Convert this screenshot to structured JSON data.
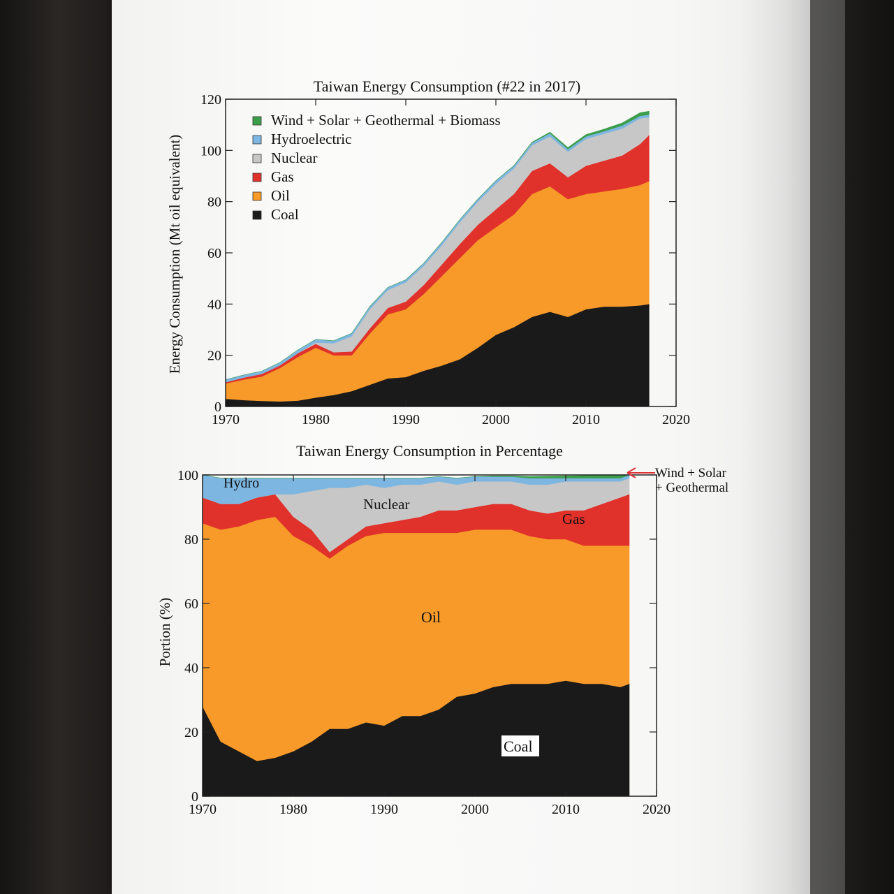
{
  "chart_data": [
    {
      "type": "area",
      "title": "Taiwan Energy Consumption (#22 in 2017)",
      "xlabel": "",
      "ylabel": "Energy Consumption (Mt oil equivalent)",
      "xlim": [
        1970,
        2020
      ],
      "ylim": [
        0,
        120
      ],
      "xticks": [
        1970,
        1980,
        1990,
        2000,
        2010,
        2020
      ],
      "yticks": [
        0,
        20,
        40,
        60,
        80,
        100,
        120
      ],
      "legend_position": "top-left",
      "x": [
        1970,
        1972,
        1974,
        1976,
        1978,
        1980,
        1982,
        1984,
        1986,
        1988,
        1990,
        1992,
        1994,
        1996,
        1998,
        2000,
        2002,
        2004,
        2006,
        2008,
        2010,
        2012,
        2014,
        2016,
        2017
      ],
      "series": [
        {
          "name": "Coal",
          "color": "#1a1a1a",
          "values": [
            3,
            2.5,
            2.2,
            2,
            2.3,
            3.5,
            4.5,
            6,
            8.5,
            11,
            11.5,
            14,
            16,
            18.5,
            23,
            28,
            31,
            35,
            37,
            35,
            38,
            39,
            39,
            39.5,
            40
          ]
        },
        {
          "name": "Oil",
          "color": "#f79a2a",
          "values": [
            6,
            8,
            9.5,
            13,
            17,
            19.5,
            15.5,
            14,
            20,
            25,
            26.5,
            30,
            35,
            39.5,
            42,
            42,
            44,
            48,
            49,
            46,
            45,
            45,
            46,
            47,
            48
          ]
        },
        {
          "name": "Gas",
          "color": "#e0322a",
          "values": [
            0.5,
            0.8,
            1,
            1,
            1.5,
            1.5,
            1.2,
            1.5,
            2,
            2.5,
            3,
            3.5,
            4.5,
            5.5,
            6,
            7,
            8,
            9,
            9,
            8.5,
            11,
            12,
            13,
            16,
            18
          ]
        },
        {
          "name": "Nuclear",
          "color": "#c7c7c7",
          "values": [
            0,
            0,
            0,
            0,
            0,
            0.5,
            3.5,
            6,
            7.5,
            7,
            7.5,
            7.5,
            7.5,
            8.5,
            9,
            10,
            10,
            10,
            10.5,
            10,
            10.5,
            10.5,
            10.5,
            10,
            7
          ]
        },
        {
          "name": "Hydroelectric",
          "color": "#7db6e0",
          "values": [
            1,
            1,
            1.1,
            1.1,
            1.2,
            1.2,
            1,
            1.1,
            1,
            1,
            1,
            1,
            1.1,
            1,
            1,
            1.2,
            1,
            1,
            1.2,
            1,
            1,
            1,
            1.2,
            1,
            1
          ]
        },
        {
          "name": "Wind + Solar + Geothermal + Biomass",
          "color": "#3a9e4a",
          "values": [
            0,
            0,
            0,
            0,
            0,
            0,
            0,
            0,
            0,
            0,
            0,
            0,
            0,
            0,
            0,
            0,
            0.1,
            0.2,
            0.4,
            0.6,
            0.7,
            0.8,
            1,
            1.2,
            1.3
          ]
        }
      ]
    },
    {
      "type": "area",
      "title": "Taiwan Energy Consumption in Percentage",
      "xlabel": "",
      "ylabel": "Portion (%)",
      "xlim": [
        1970,
        2020
      ],
      "ylim": [
        0,
        100
      ],
      "xticks": [
        1970,
        1980,
        1990,
        2000,
        2010,
        2020
      ],
      "yticks": [
        0,
        20,
        40,
        60,
        80,
        100
      ],
      "x": [
        1970,
        1972,
        1974,
        1976,
        1978,
        1980,
        1982,
        1984,
        1986,
        1988,
        1990,
        1992,
        1994,
        1996,
        1998,
        2000,
        2002,
        2004,
        2006,
        2008,
        2010,
        2012,
        2014,
        2016,
        2017
      ],
      "series": [
        {
          "name": "Coal",
          "color": "#1a1a1a",
          "values": [
            28,
            17,
            14,
            11,
            12,
            14,
            17,
            21,
            21,
            23,
            22,
            25,
            25,
            27,
            31,
            32,
            34,
            35,
            35,
            35,
            36,
            35,
            35,
            34,
            35
          ]
        },
        {
          "name": "Oil",
          "color": "#f79a2a",
          "values": [
            57,
            66,
            70,
            75,
            75,
            67,
            61,
            53,
            57,
            58,
            60,
            57,
            57,
            55,
            51,
            51,
            49,
            48,
            46,
            45,
            44,
            43,
            43,
            44,
            43
          ]
        },
        {
          "name": "Gas",
          "color": "#e0322a",
          "values": [
            8,
            8,
            7,
            7,
            7,
            6,
            5,
            2,
            2,
            3,
            3,
            4,
            5,
            7,
            7,
            7,
            8,
            8,
            8,
            8,
            9,
            11,
            13,
            15,
            16
          ]
        },
        {
          "name": "Nuclear",
          "color": "#c7c7c7",
          "values": [
            0,
            0,
            0,
            0,
            0,
            7,
            12,
            20,
            16,
            13,
            11,
            11,
            10,
            9,
            8,
            8,
            7,
            7,
            8,
            9,
            9,
            9,
            7,
            5,
            5
          ]
        },
        {
          "name": "Hydro",
          "color": "#7db6e0",
          "values": [
            7,
            8,
            8,
            6,
            5,
            5,
            4,
            3,
            3,
            2,
            3,
            2,
            2,
            1.5,
            2,
            1.5,
            1.5,
            1.5,
            2,
            2,
            1,
            1,
            1,
            1,
            1
          ]
        },
        {
          "name": "Wind + Solar + Geothermal",
          "color": "#3a9e4a",
          "values": [
            0,
            0,
            0,
            0,
            0,
            0,
            0,
            0,
            0,
            0,
            0,
            0,
            0,
            0,
            0,
            0,
            0.2,
            0.2,
            0.5,
            0.6,
            0.7,
            0.8,
            1,
            1,
            1
          ]
        }
      ],
      "annotations": {
        "hydro": "Hydro",
        "nuclear": "Nuclear",
        "gas": "Gas",
        "oil": "Oil",
        "coal": "Coal",
        "renewables_line1": "Wind + Solar",
        "renewables_line2": "+ Geothermal"
      }
    }
  ]
}
